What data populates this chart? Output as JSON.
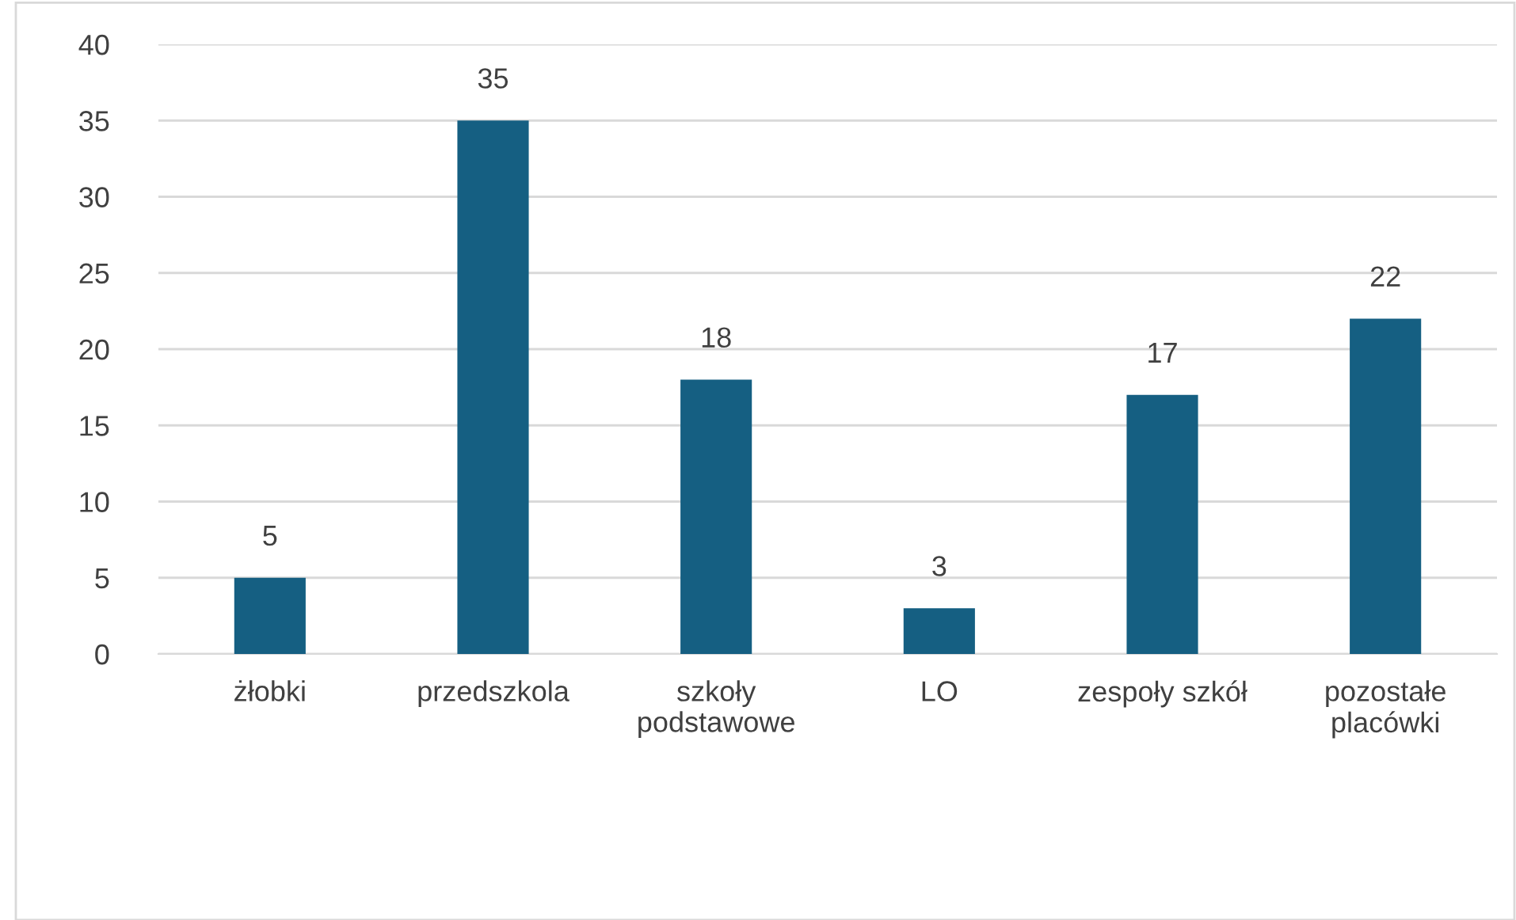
{
  "chart_data": {
    "type": "bar",
    "categories": [
      "żłobki",
      "przedszkola",
      "szkoły\npodstawowe",
      "LO",
      "zespoły szkół",
      "pozostałe\nplacówki"
    ],
    "values": [
      5,
      35,
      18,
      3,
      17,
      22
    ],
    "color": "#155f82",
    "ylim": [
      0,
      40
    ],
    "yticks": [
      0,
      5,
      10,
      15,
      20,
      25,
      30,
      35,
      40
    ],
    "grid": "y",
    "data_labels": true
  }
}
